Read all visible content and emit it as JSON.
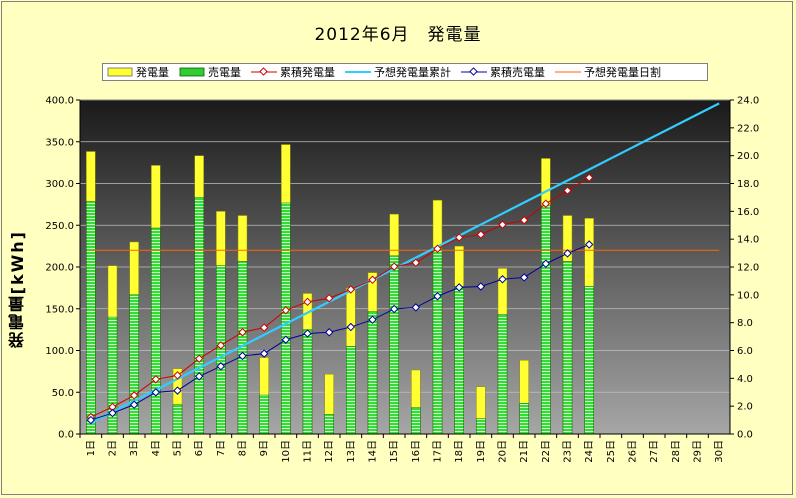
{
  "chart_data": {
    "type": "bar",
    "title": "2012年6月　発電量",
    "ylabel": "発電量[kWh]",
    "ylim": [
      0,
      400
    ],
    "y2lim": [
      0,
      24
    ],
    "y_ticks": [
      "0.0",
      "50.0",
      "100.0",
      "150.0",
      "200.0",
      "250.0",
      "300.0",
      "350.0",
      "400.0"
    ],
    "y2_ticks": [
      "0.0",
      "2.0",
      "4.0",
      "6.0",
      "8.0",
      "10.0",
      "12.0",
      "14.0",
      "16.0",
      "18.0",
      "20.0",
      "22.0",
      "24.0"
    ],
    "categories": [
      "1日",
      "2日",
      "3日",
      "4日",
      "5日",
      "6日",
      "7日",
      "8日",
      "9日",
      "10日",
      "11日",
      "12日",
      "13日",
      "14日",
      "15日",
      "16日",
      "17日",
      "18日",
      "19日",
      "20日",
      "21日",
      "22日",
      "23日",
      "24日",
      "25日",
      "26日",
      "27日",
      "28日",
      "29日",
      "30日"
    ],
    "legend": [
      "発電量",
      "売電量",
      "累積発電量",
      "予想発電量累計",
      "累積売電量",
      "予想発電量日割"
    ],
    "series": [
      {
        "name": "発電量",
        "type": "bar",
        "color": "#ffff33",
        "values": [
          20.3,
          12.1,
          13.8,
          19.3,
          4.7,
          20.0,
          16.0,
          15.7,
          5.5,
          20.8,
          10.1,
          4.3,
          10.5,
          11.6,
          15.8,
          4.6,
          16.8,
          13.5,
          3.4,
          11.9,
          5.3,
          19.8,
          15.7,
          15.5,
          null,
          null,
          null,
          null,
          null,
          null
        ]
      },
      {
        "name": "売電量",
        "type": "bar",
        "color": "#33cc33",
        "values": [
          16.7,
          8.4,
          10.0,
          14.8,
          2.1,
          17.0,
          12.1,
          12.4,
          2.8,
          16.6,
          7.5,
          1.4,
          6.3,
          8.8,
          12.8,
          1.9,
          13.4,
          10.6,
          1.1,
          8.6,
          2.2,
          16.4,
          12.4,
          10.6,
          null,
          null,
          null,
          null,
          null,
          null
        ]
      },
      {
        "name": "累積発電量",
        "type": "line",
        "axis": "right",
        "color": "#cc0000",
        "values": [
          20.3,
          32.4,
          46.2,
          65.5,
          70.2,
          90.2,
          106.2,
          121.9,
          127.4,
          148.2,
          158.3,
          162.6,
          173.1,
          184.7,
          200.5,
          205.1,
          221.9,
          235.4,
          238.8,
          250.7,
          256.0,
          275.8,
          291.5,
          307.0,
          null,
          null,
          null,
          null,
          null,
          null
        ]
      },
      {
        "name": "予想発電量累計",
        "type": "line",
        "axis": "right",
        "color": "#33ccff",
        "values": [
          13.2,
          26.4,
          39.6,
          52.8,
          66.0,
          79.2,
          92.4,
          105.6,
          118.8,
          132.0,
          145.2,
          158.4,
          171.6,
          184.8,
          198.0,
          211.2,
          224.4,
          237.6,
          250.8,
          264.0,
          277.2,
          290.4,
          303.6,
          316.8,
          330.0,
          343.2,
          356.4,
          369.6,
          382.8,
          396.0
        ]
      },
      {
        "name": "累積売電量",
        "type": "line",
        "axis": "right",
        "color": "#000099",
        "values": [
          16.7,
          25.1,
          35.1,
          49.9,
          52.0,
          69.0,
          81.1,
          93.5,
          96.3,
          112.9,
          120.4,
          121.8,
          128.1,
          136.9,
          149.7,
          151.6,
          165.0,
          175.6,
          176.7,
          185.3,
          187.5,
          203.9,
          216.3,
          226.9,
          null,
          null,
          null,
          null,
          null,
          null
        ]
      },
      {
        "name": "予想発電量日割",
        "type": "line",
        "axis": "right",
        "color": "#ff6600",
        "values": [
          13.2,
          13.2,
          13.2,
          13.2,
          13.2,
          13.2,
          13.2,
          13.2,
          13.2,
          13.2,
          13.2,
          13.2,
          13.2,
          13.2,
          13.2,
          13.2,
          13.2,
          13.2,
          13.2,
          13.2,
          13.2,
          13.2,
          13.2,
          13.2,
          13.2,
          13.2,
          13.2,
          13.2,
          13.2,
          13.2
        ]
      }
    ]
  }
}
